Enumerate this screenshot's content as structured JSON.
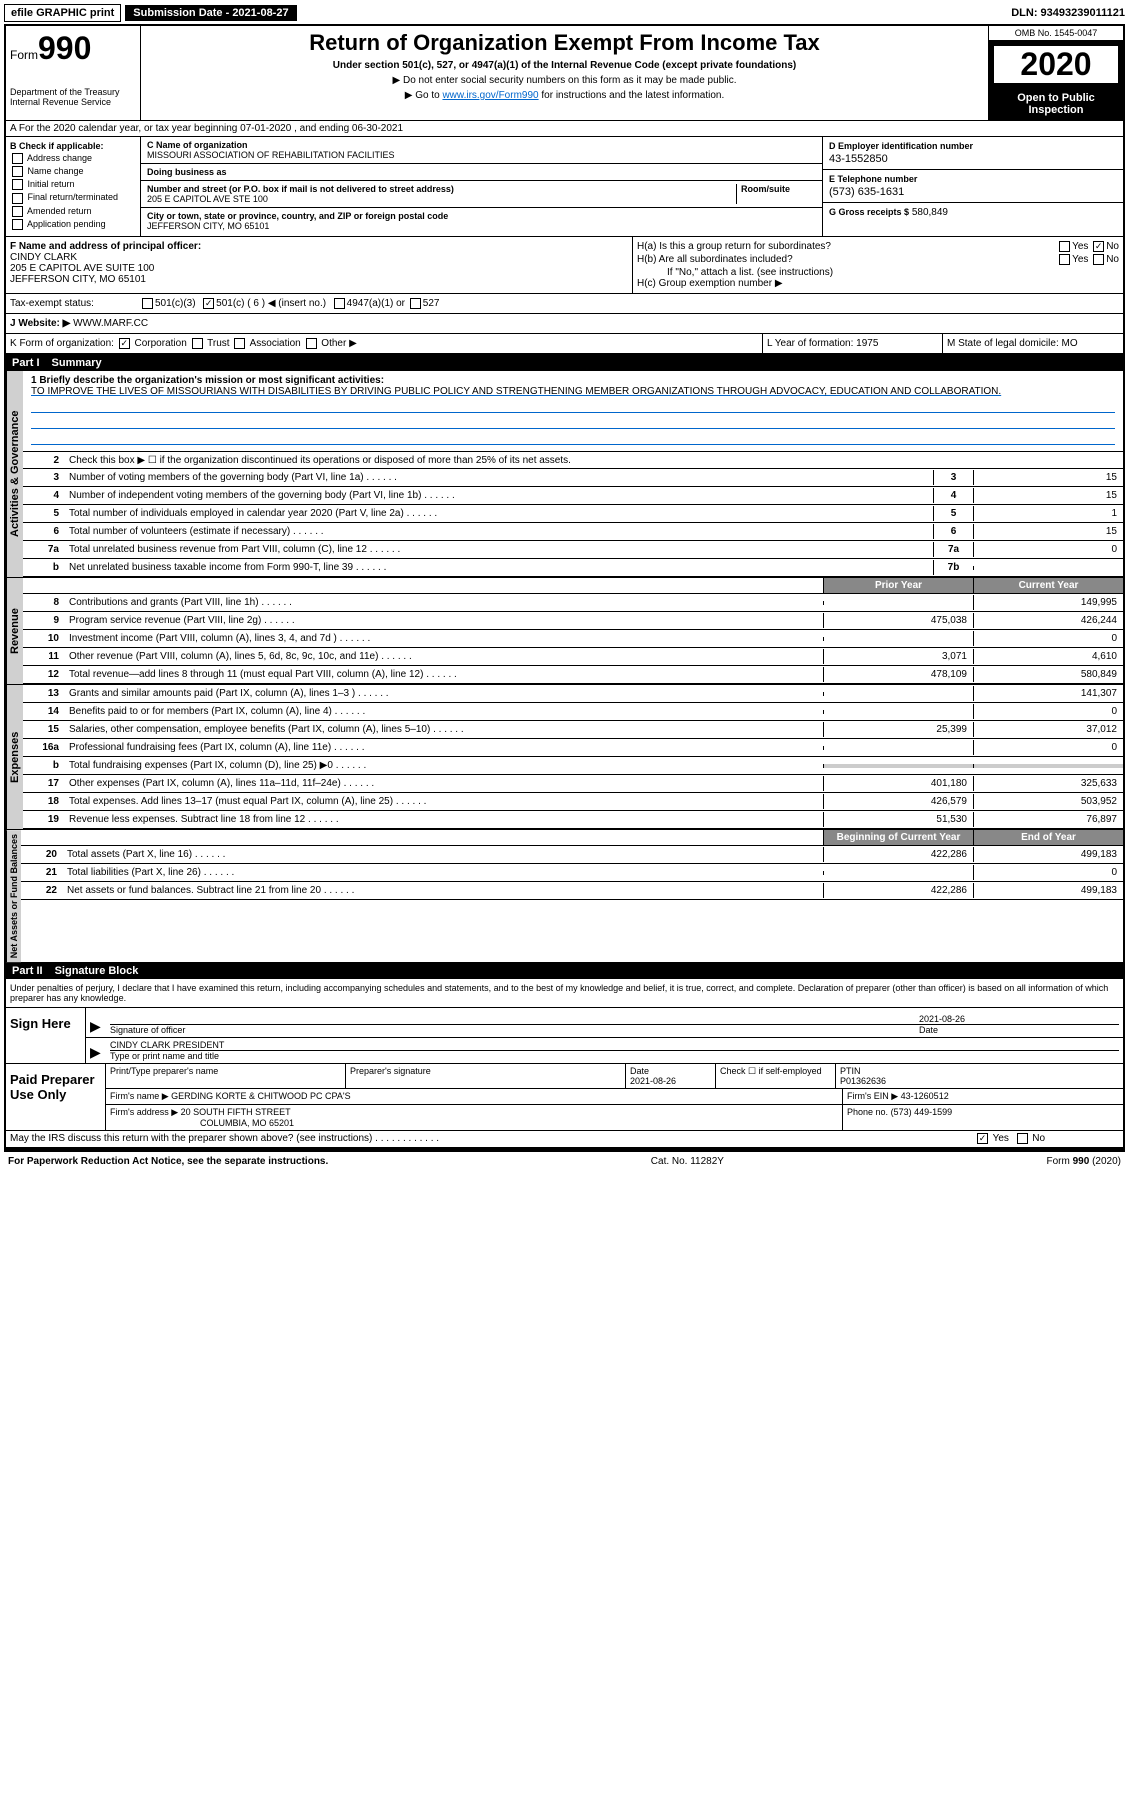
{
  "top_bar": {
    "efile": "efile GRAPHIC print",
    "submission": "Submission Date - 2021-08-27",
    "dln": "DLN: 93493239011121"
  },
  "header": {
    "form_word": "Form",
    "form_num": "990",
    "dept": "Department of the Treasury\nInternal Revenue Service",
    "title": "Return of Organization Exempt From Income Tax",
    "subtitle": "Under section 501(c), 527, or 4947(a)(1) of the Internal Revenue Code (except private foundations)",
    "note1": "▶ Do not enter social security numbers on this form as it may be made public.",
    "note2_pre": "▶ Go to ",
    "note2_link": "www.irs.gov/Form990",
    "note2_post": " for instructions and the latest information.",
    "omb": "OMB No. 1545-0047",
    "year": "2020",
    "open": "Open to Public Inspection"
  },
  "row_a": "A For the 2020 calendar year, or tax year beginning 07-01-2020    , and ending 06-30-2021",
  "section_b": {
    "hdr": "B Check if applicable:",
    "opts": [
      "Address change",
      "Name change",
      "Initial return",
      "Final return/terminated",
      "Amended return",
      "Application pending"
    ]
  },
  "section_c": {
    "name_lbl": "C Name of organization",
    "name": "MISSOURI ASSOCIATION OF REHABILITATION FACILITIES",
    "dba_lbl": "Doing business as",
    "dba": "",
    "addr_lbl": "Number and street (or P.O. box if mail is not delivered to street address)",
    "room_lbl": "Room/suite",
    "addr": "205 E CAPITOL AVE STE 100",
    "city_lbl": "City or town, state or province, country, and ZIP or foreign postal code",
    "city": "JEFFERSON CITY, MO  65101"
  },
  "section_d": {
    "ein_lbl": "D Employer identification number",
    "ein": "43-1552850",
    "phone_lbl": "E Telephone number",
    "phone": "(573) 635-1631",
    "gross_lbl": "G Gross receipts $",
    "gross": "580,849"
  },
  "section_f": {
    "lbl": "F Name and address of principal officer:",
    "name": "CINDY CLARK",
    "addr1": "205 E CAPITOL AVE SUITE 100",
    "addr2": "JEFFERSON CITY, MO  65101"
  },
  "section_h": {
    "ha": "H(a)  Is this a group return for subordinates?",
    "hb": "H(b)  Are all subordinates included?",
    "hb_note": "If \"No,\" attach a list. (see instructions)",
    "hc": "H(c)  Group exemption number ▶",
    "yes": "Yes",
    "no": "No"
  },
  "tax_status": {
    "lbl": "Tax-exempt status:",
    "o1": "501(c)(3)",
    "o2": "501(c) ( 6 ) ◀ (insert no.)",
    "o3": "4947(a)(1) or",
    "o4": "527"
  },
  "row_j": {
    "lbl": "J   Website: ▶",
    "val": "WWW.MARF.CC"
  },
  "row_k": {
    "k": "K Form of organization:",
    "corp": "Corporation",
    "trust": "Trust",
    "assoc": "Association",
    "other": "Other ▶",
    "l": "L Year of formation: 1975",
    "m": "M State of legal domicile: MO"
  },
  "part1": {
    "hdr_num": "Part I",
    "hdr_title": "Summary",
    "q1": "1  Briefly describe the organization's mission or most significant activities:",
    "mission": "TO IMPROVE THE LIVES OF MISSOURIANS WITH DISABILITIES BY DRIVING PUBLIC POLICY AND STRENGTHENING MEMBER ORGANIZATIONS THROUGH ADVOCACY, EDUCATION AND COLLABORATION.",
    "q2": "Check this box ▶ ☐  if the organization discontinued its operations or disposed of more than 25% of its net assets.",
    "sidebar_activities": "Activities & Governance",
    "sidebar_revenue": "Revenue",
    "sidebar_expenses": "Expenses",
    "sidebar_net": "Net Assets or Fund Balances",
    "col_prior": "Prior Year",
    "col_current": "Current Year",
    "col_begin": "Beginning of Current Year",
    "col_end": "End of Year",
    "lines_gov": [
      {
        "n": "3",
        "t": "Number of voting members of the governing body (Part VI, line 1a)",
        "box": "3",
        "v": "15"
      },
      {
        "n": "4",
        "t": "Number of independent voting members of the governing body (Part VI, line 1b)",
        "box": "4",
        "v": "15"
      },
      {
        "n": "5",
        "t": "Total number of individuals employed in calendar year 2020 (Part V, line 2a)",
        "box": "5",
        "v": "1"
      },
      {
        "n": "6",
        "t": "Total number of volunteers (estimate if necessary)",
        "box": "6",
        "v": "15"
      },
      {
        "n": "7a",
        "t": "Total unrelated business revenue from Part VIII, column (C), line 12",
        "box": "7a",
        "v": "0"
      },
      {
        "n": "b",
        "t": "Net unrelated business taxable income from Form 990-T, line 39",
        "box": "7b",
        "v": ""
      }
    ],
    "lines_rev": [
      {
        "n": "8",
        "t": "Contributions and grants (Part VIII, line 1h)",
        "pv": "",
        "cv": "149,995"
      },
      {
        "n": "9",
        "t": "Program service revenue (Part VIII, line 2g)",
        "pv": "475,038",
        "cv": "426,244"
      },
      {
        "n": "10",
        "t": "Investment income (Part VIII, column (A), lines 3, 4, and 7d )",
        "pv": "",
        "cv": "0"
      },
      {
        "n": "11",
        "t": "Other revenue (Part VIII, column (A), lines 5, 6d, 8c, 9c, 10c, and 11e)",
        "pv": "3,071",
        "cv": "4,610"
      },
      {
        "n": "12",
        "t": "Total revenue—add lines 8 through 11 (must equal Part VIII, column (A), line 12)",
        "pv": "478,109",
        "cv": "580,849"
      }
    ],
    "lines_exp": [
      {
        "n": "13",
        "t": "Grants and similar amounts paid (Part IX, column (A), lines 1–3 )",
        "pv": "",
        "cv": "141,307"
      },
      {
        "n": "14",
        "t": "Benefits paid to or for members (Part IX, column (A), line 4)",
        "pv": "",
        "cv": "0"
      },
      {
        "n": "15",
        "t": "Salaries, other compensation, employee benefits (Part IX, column (A), lines 5–10)",
        "pv": "25,399",
        "cv": "37,012"
      },
      {
        "n": "16a",
        "t": "Professional fundraising fees (Part IX, column (A), line 11e)",
        "pv": "",
        "cv": "0"
      },
      {
        "n": "b",
        "t": "Total fundraising expenses (Part IX, column (D), line 25) ▶0",
        "pv": "grey",
        "cv": "grey"
      },
      {
        "n": "17",
        "t": "Other expenses (Part IX, column (A), lines 11a–11d, 11f–24e)",
        "pv": "401,180",
        "cv": "325,633"
      },
      {
        "n": "18",
        "t": "Total expenses. Add lines 13–17 (must equal Part IX, column (A), line 25)",
        "pv": "426,579",
        "cv": "503,952"
      },
      {
        "n": "19",
        "t": "Revenue less expenses. Subtract line 18 from line 12",
        "pv": "51,530",
        "cv": "76,897"
      }
    ],
    "lines_net": [
      {
        "n": "20",
        "t": "Total assets (Part X, line 16)",
        "pv": "422,286",
        "cv": "499,183"
      },
      {
        "n": "21",
        "t": "Total liabilities (Part X, line 26)",
        "pv": "",
        "cv": "0"
      },
      {
        "n": "22",
        "t": "Net assets or fund balances. Subtract line 21 from line 20",
        "pv": "422,286",
        "cv": "499,183"
      }
    ]
  },
  "part2": {
    "hdr_num": "Part II",
    "hdr_title": "Signature Block",
    "decl": "Under penalties of perjury, I declare that I have examined this return, including accompanying schedules and statements, and to the best of my knowledge and belief, it is true, correct, and complete. Declaration of preparer (other than officer) is based on all information of which preparer has any knowledge.",
    "sign_here": "Sign Here",
    "sig_officer": "Signature of officer",
    "sig_date": "Date",
    "sig_date_val": "2021-08-26",
    "sig_name": "CINDY CLARK  PRESIDENT",
    "sig_name_lbl": "Type or print name and title",
    "paid_prep": "Paid Preparer Use Only",
    "prep_name_lbl": "Print/Type preparer's name",
    "prep_sig_lbl": "Preparer's signature",
    "prep_date_lbl": "Date",
    "prep_date": "2021-08-26",
    "prep_self_lbl": "Check ☐ if self-employed",
    "ptin_lbl": "PTIN",
    "ptin": "P01362636",
    "firm_name_lbl": "Firm's name    ▶",
    "firm_name": "GERDING KORTE & CHITWOOD PC CPA'S",
    "firm_ein_lbl": "Firm's EIN ▶",
    "firm_ein": "43-1260512",
    "firm_addr_lbl": "Firm's address ▶",
    "firm_addr1": "20 SOUTH FIFTH STREET",
    "firm_addr2": "COLUMBIA, MO  65201",
    "firm_phone_lbl": "Phone no.",
    "firm_phone": "(573) 449-1599",
    "discuss": "May the IRS discuss this return with the preparer shown above? (see instructions)",
    "yes": "Yes",
    "no": "No"
  },
  "footer": {
    "left": "For Paperwork Reduction Act Notice, see the separate instructions.",
    "mid": "Cat. No. 11282Y",
    "right": "Form 990 (2020)"
  }
}
